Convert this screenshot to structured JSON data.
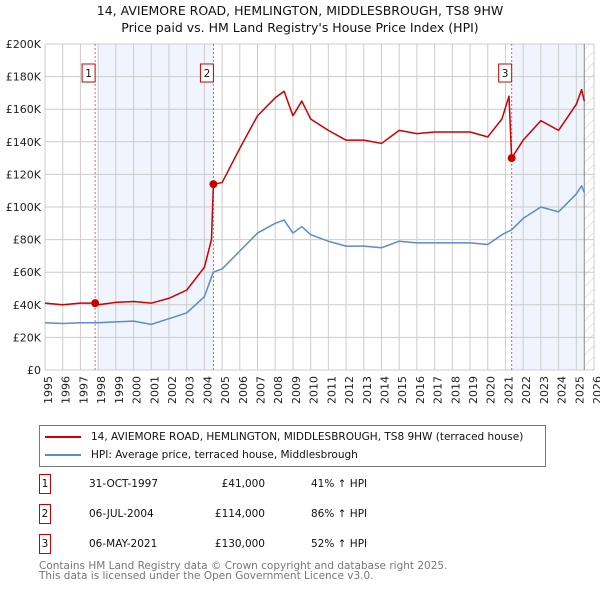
{
  "title": "14, AVIEMORE ROAD, HEMLINGTON, MIDDLESBROUGH, TS8 9HW",
  "subtitle": "Price paid vs. HM Land Registry's House Price Index (HPI)",
  "chart_data": {
    "type": "line",
    "xlim": [
      1995,
      2026
    ],
    "ylim": [
      0,
      200000
    ],
    "x_ticks": [
      "1995",
      "1996",
      "1997",
      "1998",
      "1999",
      "2000",
      "2001",
      "2002",
      "2003",
      "2004",
      "2005",
      "2006",
      "2007",
      "2008",
      "2009",
      "2010",
      "2011",
      "2012",
      "2013",
      "2014",
      "2015",
      "2016",
      "2017",
      "2018",
      "2019",
      "2020",
      "2021",
      "2022",
      "2023",
      "2024",
      "2025",
      "2026"
    ],
    "y_ticks": [
      {
        "v": 0,
        "label": "£0"
      },
      {
        "v": 20000,
        "label": "£20K"
      },
      {
        "v": 40000,
        "label": "£40K"
      },
      {
        "v": 60000,
        "label": "£60K"
      },
      {
        "v": 80000,
        "label": "£80K"
      },
      {
        "v": 100000,
        "label": "£100K"
      },
      {
        "v": 120000,
        "label": "£120K"
      },
      {
        "v": 140000,
        "label": "£140K"
      },
      {
        "v": 160000,
        "label": "£160K"
      },
      {
        "v": 180000,
        "label": "£180K"
      },
      {
        "v": 200000,
        "label": "£200K"
      }
    ],
    "grid": true,
    "shaded_ranges": [
      [
        1998,
        2004.51
      ],
      [
        2021.35,
        2025.45
      ]
    ],
    "hatched_range": [
      2025.45,
      2026
    ],
    "series": [
      {
        "name": "14, AVIEMORE ROAD, HEMLINGTON, MIDDLESBROUGH, TS8 9HW (terraced house)",
        "color": "#cc0000",
        "points": [
          [
            1995,
            41000
          ],
          [
            1996,
            40000
          ],
          [
            1997,
            41000
          ],
          [
            1997.83,
            41000
          ],
          [
            1998,
            40000
          ],
          [
            1999,
            41500
          ],
          [
            2000,
            42000
          ],
          [
            2001,
            41000
          ],
          [
            2002,
            44000
          ],
          [
            2003,
            49000
          ],
          [
            2004,
            63000
          ],
          [
            2004.4,
            80000
          ],
          [
            2004.51,
            114000
          ],
          [
            2005,
            115000
          ],
          [
            2006,
            136000
          ],
          [
            2007,
            156000
          ],
          [
            2008,
            167000
          ],
          [
            2008.5,
            171000
          ],
          [
            2009,
            156000
          ],
          [
            2009.5,
            165000
          ],
          [
            2010,
            154000
          ],
          [
            2011,
            147000
          ],
          [
            2012,
            141000
          ],
          [
            2013,
            141000
          ],
          [
            2014,
            139000
          ],
          [
            2015,
            147000
          ],
          [
            2016,
            145000
          ],
          [
            2017,
            146000
          ],
          [
            2018,
            146000
          ],
          [
            2019,
            146000
          ],
          [
            2020,
            143000
          ],
          [
            2020.8,
            154000
          ],
          [
            2021.2,
            168000
          ],
          [
            2021.35,
            130000
          ],
          [
            2022,
            141000
          ],
          [
            2023,
            153000
          ],
          [
            2024,
            147000
          ],
          [
            2025,
            163000
          ],
          [
            2025.3,
            172000
          ],
          [
            2025.45,
            165000
          ]
        ]
      },
      {
        "name": "HPI: Average price, terraced house, Middlesbrough",
        "color": "#5b8bd0",
        "points": [
          [
            1995,
            29000
          ],
          [
            1996,
            28500
          ],
          [
            1997,
            29000
          ],
          [
            1998,
            29000
          ],
          [
            1999,
            29500
          ],
          [
            2000,
            30000
          ],
          [
            2001,
            28000
          ],
          [
            2002,
            31500
          ],
          [
            2003,
            35000
          ],
          [
            2004,
            45000
          ],
          [
            2004.5,
            60000
          ],
          [
            2005,
            62000
          ],
          [
            2006,
            73000
          ],
          [
            2007,
            84000
          ],
          [
            2008,
            90000
          ],
          [
            2008.5,
            92000
          ],
          [
            2009,
            84000
          ],
          [
            2009.5,
            88000
          ],
          [
            2010,
            83000
          ],
          [
            2011,
            79000
          ],
          [
            2012,
            76000
          ],
          [
            2013,
            76000
          ],
          [
            2014,
            75000
          ],
          [
            2015,
            79000
          ],
          [
            2016,
            78000
          ],
          [
            2017,
            78000
          ],
          [
            2018,
            78000
          ],
          [
            2019,
            78000
          ],
          [
            2020,
            77000
          ],
          [
            2020.8,
            83000
          ],
          [
            2021.35,
            86000
          ],
          [
            2022,
            93000
          ],
          [
            2023,
            100000
          ],
          [
            2024,
            97000
          ],
          [
            2025,
            108000
          ],
          [
            2025.3,
            113000
          ],
          [
            2025.45,
            109000
          ]
        ]
      }
    ],
    "sales": [
      {
        "label": "1",
        "x": 1997.83,
        "y": 41000
      },
      {
        "label": "2",
        "x": 2004.51,
        "y": 114000
      },
      {
        "label": "3",
        "x": 2021.35,
        "y": 130000
      }
    ]
  },
  "legend": {
    "red_label": "14, AVIEMORE ROAD, HEMLINGTON, MIDDLESBROUGH, TS8 9HW (terraced house)",
    "blue_label": "HPI: Average price, terraced house, Middlesbrough"
  },
  "transactions": [
    {
      "num": "1",
      "date": "31-OCT-1997",
      "price": "£41,000",
      "hpi": "41% ↑ HPI"
    },
    {
      "num": "2",
      "date": "06-JUL-2004",
      "price": "£114,000",
      "hpi": "86% ↑ HPI"
    },
    {
      "num": "3",
      "date": "06-MAY-2021",
      "price": "£130,000",
      "hpi": "52% ↑ HPI"
    }
  ],
  "footer": {
    "line1": "Contains HM Land Registry data © Crown copyright and database right 2025.",
    "line2": "This data is licensed under the Open Government Licence v3.0."
  }
}
